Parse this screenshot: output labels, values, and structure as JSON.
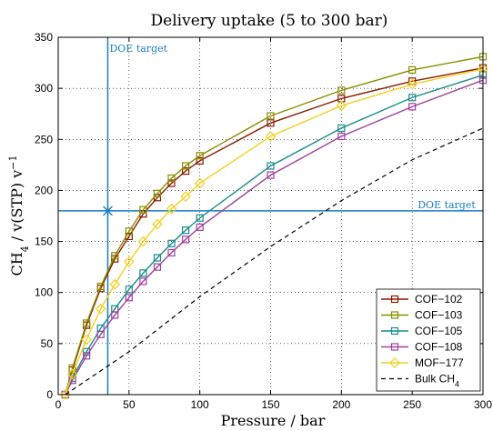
{
  "chart_data": {
    "type": "line",
    "title": "Delivery uptake (5 to 300 bar)",
    "xlabel": "Pressure / bar",
    "ylabel_parts": [
      "CH",
      "4",
      " / v(STP) v",
      "−1"
    ],
    "xlim": [
      0,
      300
    ],
    "ylim": [
      0,
      350
    ],
    "xticks": [
      0,
      50,
      100,
      150,
      200,
      250,
      300
    ],
    "yticks": [
      0,
      50,
      100,
      150,
      200,
      250,
      300,
      350
    ],
    "grid": true,
    "legend_position": "bottom-right",
    "x": [
      5,
      10,
      20,
      30,
      40,
      50,
      60,
      70,
      80,
      90,
      100,
      150,
      200,
      250,
      300
    ],
    "series": [
      {
        "name": "COF−102",
        "color": "#8B1A00",
        "marker": "square",
        "values": [
          0,
          24,
          68,
          104,
          133,
          155,
          177,
          193,
          207,
          219,
          229,
          266,
          290,
          307,
          320
        ]
      },
      {
        "name": "COF−103",
        "color": "#8C8C00",
        "marker": "square",
        "values": [
          0,
          26,
          70,
          106,
          136,
          160,
          181,
          197,
          212,
          224,
          234,
          273,
          298,
          318,
          331
        ]
      },
      {
        "name": "COF−105",
        "color": "#1A8C8C",
        "marker": "square",
        "values": [
          0,
          16,
          42,
          65,
          84,
          103,
          119,
          134,
          148,
          161,
          173,
          224,
          261,
          291,
          313
        ]
      },
      {
        "name": "COF−108",
        "color": "#A040A0",
        "marker": "square",
        "values": [
          0,
          14,
          38,
          59,
          78,
          95,
          111,
          125,
          139,
          152,
          164,
          215,
          253,
          282,
          308
        ]
      },
      {
        "name": "MOF−177",
        "color": "#F2D020",
        "marker": "diamond",
        "values": [
          0,
          20,
          54,
          84,
          108,
          130,
          150,
          167,
          182,
          194,
          207,
          253,
          283,
          304,
          319
        ]
      }
    ],
    "bulk": {
      "name_parts": [
        "Bulk CH",
        "4"
      ],
      "color": "#000000",
      "x": [
        5,
        50,
        100,
        150,
        200,
        250,
        300
      ],
      "values": [
        0,
        42,
        96,
        145,
        190,
        230,
        261
      ]
    },
    "doe_target": {
      "label": "DOE target",
      "x": 35,
      "y": 180,
      "color": "#1A7FBF"
    }
  }
}
